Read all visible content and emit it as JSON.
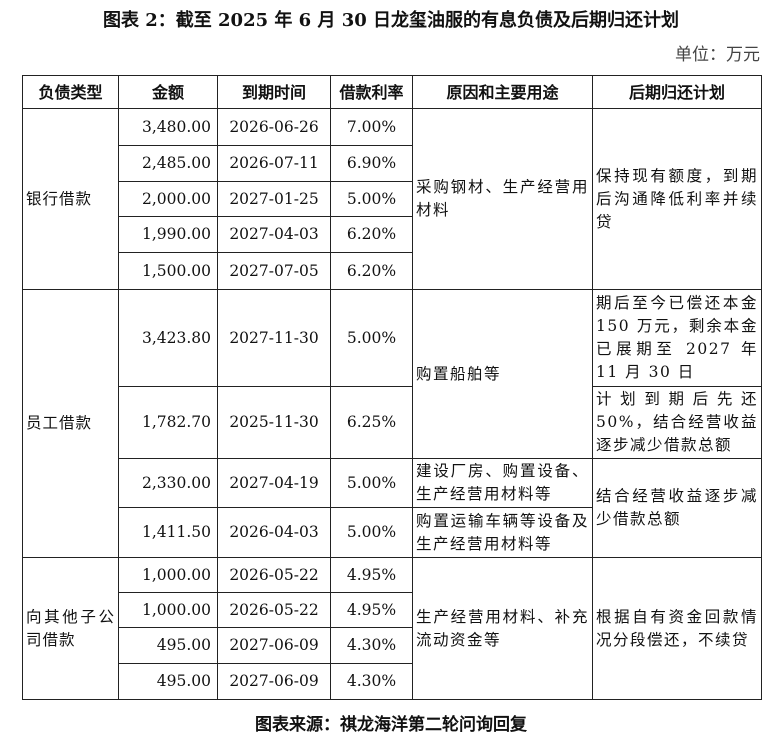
{
  "title": "图表 2：截至 2025 年 6 月 30 日龙玺油服的有息负债及后期归还计划",
  "unit": "单位：万元",
  "headers": [
    "负债类型",
    "金额",
    "到期时间",
    "借款利率",
    "原因和主要用途",
    "后期归还计划"
  ],
  "groups": [
    {
      "type": "银行借款",
      "rows": [
        {
          "amount": "3,480.00",
          "due": "2026-06-26",
          "rate": "7.00%"
        },
        {
          "amount": "2,485.00",
          "due": "2026-07-11",
          "rate": "6.90%"
        },
        {
          "amount": "2,000.00",
          "due": "2027-01-25",
          "rate": "5.00%"
        },
        {
          "amount": "1,990.00",
          "due": "2027-04-03",
          "rate": "6.20%"
        },
        {
          "amount": "1,500.00",
          "due": "2027-07-05",
          "rate": "6.20%"
        }
      ],
      "purpose": "采购钢材、生产经营用材料",
      "plan": "保持现有额度，到期后沟通降低利率并续贷"
    },
    {
      "type": "员工借款",
      "rows": [
        {
          "amount": "3,423.80",
          "due": "2027-11-30",
          "rate": "5.00%",
          "plan": "期后至今已偿还本金 150 万元，剩余本金已展期至 2027 年 11 月 30 日"
        },
        {
          "amount": "1,782.70",
          "due": "2025-11-30",
          "rate": "6.25%",
          "plan": "计划到期后先还 50%，结合经营收益逐步减少借款总额"
        },
        {
          "amount": "2,330.00",
          "due": "2027-04-19",
          "rate": "5.00%",
          "purpose": "建设厂房、购置设备、生产经营用材料等"
        },
        {
          "amount": "1,411.50",
          "due": "2026-04-03",
          "rate": "5.00%",
          "purpose": "购置运输车辆等设备及生产经营用材料等"
        }
      ],
      "purpose_ship": "购置船舶等",
      "plan_tail": "结合经营收益逐步减少借款总额"
    },
    {
      "type": "向其他子公司借款",
      "rows": [
        {
          "amount": "1,000.00",
          "due": "2026-05-22",
          "rate": "4.95%"
        },
        {
          "amount": "1,000.00",
          "due": "2026-05-22",
          "rate": "4.95%"
        },
        {
          "amount": "495.00",
          "due": "2027-06-09",
          "rate": "4.30%"
        },
        {
          "amount": "495.00",
          "due": "2027-06-09",
          "rate": "4.30%"
        }
      ],
      "purpose": "生产经营用材料、补充流动资金等",
      "plan": "根据自有资金回款情况分段偿还，不续贷"
    }
  ],
  "footer": "图表来源：祺龙海洋第二轮问询回复"
}
